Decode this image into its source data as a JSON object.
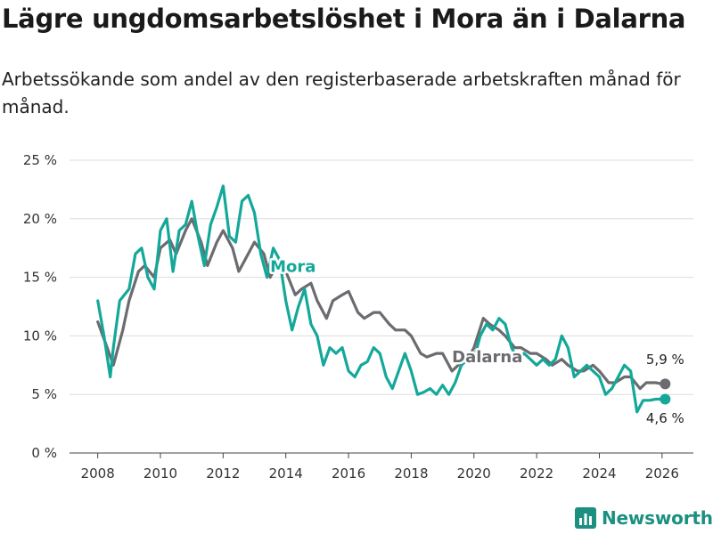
{
  "title": "Lägre ungdomsarbetslöshet i Mora än i Dalarna",
  "subtitle": "Arbetssökande som andel av den registerbaserade arbetskraften månad för månad.",
  "brand": {
    "name": "Newsworthy",
    "logo_icon": "bar-chart-logo-icon"
  },
  "colors": {
    "mora": "#14a89a",
    "dalarna": "#6b6b70",
    "grid": "#dddddd"
  },
  "chart_data": {
    "type": "line",
    "title": "Lägre ungdomsarbetslöshet i Mora än i Dalarna",
    "xlabel": "",
    "ylabel": "",
    "xlim": [
      2007.1,
      2027
    ],
    "ylim": [
      0,
      25
    ],
    "x_ticks": [
      2008,
      2010,
      2012,
      2014,
      2016,
      2018,
      2020,
      2022,
      2024,
      2026
    ],
    "y_ticks": [
      0,
      5,
      10,
      15,
      20,
      25
    ],
    "y_tick_labels": [
      "0 %",
      "5 %",
      "10 %",
      "15 %",
      "20 %",
      "25 %"
    ],
    "x_tick_labels": [
      "2008",
      "2010",
      "2012",
      "2014",
      "2016",
      "2018",
      "2020",
      "2022",
      "2024",
      "2026"
    ],
    "series": [
      {
        "name": "Dalarna",
        "label": "Dalarna",
        "end_label": "5,9 %",
        "x": [
          2008.0,
          2008.3,
          2008.5,
          2008.8,
          2009.0,
          2009.3,
          2009.5,
          2009.8,
          2010.0,
          2010.3,
          2010.5,
          2010.8,
          2011.0,
          2011.3,
          2011.5,
          2011.8,
          2012.0,
          2012.3,
          2012.5,
          2012.8,
          2013.0,
          2013.3,
          2013.5,
          2013.8,
          2014.0,
          2014.3,
          2014.5,
          2014.8,
          2015.0,
          2015.3,
          2015.5,
          2015.8,
          2016.0,
          2016.3,
          2016.5,
          2016.8,
          2017.0,
          2017.3,
          2017.5,
          2017.8,
          2018.0,
          2018.3,
          2018.5,
          2018.8,
          2019.0,
          2019.3,
          2019.5,
          2019.8,
          2020.0,
          2020.3,
          2020.5,
          2020.8,
          2021.0,
          2021.3,
          2021.5,
          2021.8,
          2022.0,
          2022.3,
          2022.5,
          2022.8,
          2023.0,
          2023.3,
          2023.5,
          2023.8,
          2024.0,
          2024.3,
          2024.5,
          2024.8,
          2025.0,
          2025.3,
          2025.5,
          2025.8,
          2026.0,
          2026.1
        ],
        "values": [
          11.2,
          9.0,
          7.5,
          10.5,
          13.0,
          15.5,
          16.0,
          15.0,
          17.5,
          18.2,
          17.0,
          19.0,
          20.0,
          18.0,
          16.0,
          18.0,
          19.0,
          17.5,
          15.5,
          17.0,
          18.0,
          17.0,
          15.0,
          16.5,
          15.5,
          13.5,
          14.0,
          14.5,
          13.0,
          11.5,
          13.0,
          13.5,
          13.8,
          12.0,
          11.5,
          12.0,
          12.0,
          11.0,
          10.5,
          10.5,
          10.0,
          8.5,
          8.2,
          8.5,
          8.5,
          7.0,
          7.5,
          8.0,
          9.0,
          11.5,
          11.0,
          10.5,
          10.0,
          9.0,
          9.0,
          8.5,
          8.5,
          8.0,
          7.5,
          8.0,
          7.5,
          7.0,
          7.0,
          7.5,
          7.0,
          6.0,
          6.0,
          6.5,
          6.5,
          5.5,
          6.0,
          6.0,
          5.9,
          5.9
        ]
      },
      {
        "name": "Mora",
        "label": "Mora",
        "end_label": "4,6 %",
        "x": [
          2008.0,
          2008.2,
          2008.4,
          2008.5,
          2008.7,
          2009.0,
          2009.2,
          2009.4,
          2009.6,
          2009.8,
          2010.0,
          2010.2,
          2010.4,
          2010.6,
          2010.8,
          2011.0,
          2011.2,
          2011.4,
          2011.6,
          2011.8,
          2012.0,
          2012.2,
          2012.4,
          2012.6,
          2012.8,
          2013.0,
          2013.2,
          2013.4,
          2013.6,
          2013.8,
          2014.0,
          2014.2,
          2014.4,
          2014.6,
          2014.8,
          2015.0,
          2015.2,
          2015.4,
          2015.6,
          2015.8,
          2016.0,
          2016.2,
          2016.4,
          2016.6,
          2016.8,
          2017.0,
          2017.2,
          2017.4,
          2017.6,
          2017.8,
          2018.0,
          2018.2,
          2018.4,
          2018.6,
          2018.8,
          2019.0,
          2019.2,
          2019.4,
          2019.6,
          2019.8,
          2020.0,
          2020.2,
          2020.4,
          2020.6,
          2020.8,
          2021.0,
          2021.2,
          2021.4,
          2021.6,
          2021.8,
          2022.0,
          2022.2,
          2022.4,
          2022.6,
          2022.8,
          2023.0,
          2023.2,
          2023.4,
          2023.6,
          2023.8,
          2024.0,
          2024.2,
          2024.4,
          2024.6,
          2024.8,
          2025.0,
          2025.2,
          2025.4,
          2025.6,
          2025.8,
          2026.0,
          2026.1
        ],
        "values": [
          13.0,
          10.0,
          6.5,
          9.0,
          13.0,
          14.0,
          17.0,
          17.5,
          15.0,
          14.0,
          19.0,
          20.0,
          15.5,
          19.0,
          19.5,
          21.5,
          18.5,
          16.0,
          19.5,
          21.0,
          22.8,
          18.5,
          18.0,
          21.5,
          22.0,
          20.5,
          17.0,
          15.0,
          17.5,
          16.5,
          13.0,
          10.5,
          12.5,
          14.0,
          11.0,
          10.0,
          7.5,
          9.0,
          8.5,
          9.0,
          7.0,
          6.5,
          7.5,
          7.8,
          9.0,
          8.5,
          6.5,
          5.5,
          7.0,
          8.5,
          7.0,
          5.0,
          5.2,
          5.5,
          5.0,
          5.8,
          5.0,
          6.0,
          7.5,
          8.0,
          8.0,
          10.0,
          11.0,
          10.5,
          11.5,
          11.0,
          9.0,
          8.0,
          8.5,
          8.0,
          7.5,
          8.0,
          7.5,
          8.0,
          10.0,
          9.0,
          6.5,
          7.0,
          7.5,
          7.0,
          6.5,
          5.0,
          5.5,
          6.5,
          7.5,
          7.0,
          3.5,
          4.5,
          4.5,
          4.6,
          4.6,
          4.6
        ]
      }
    ]
  }
}
